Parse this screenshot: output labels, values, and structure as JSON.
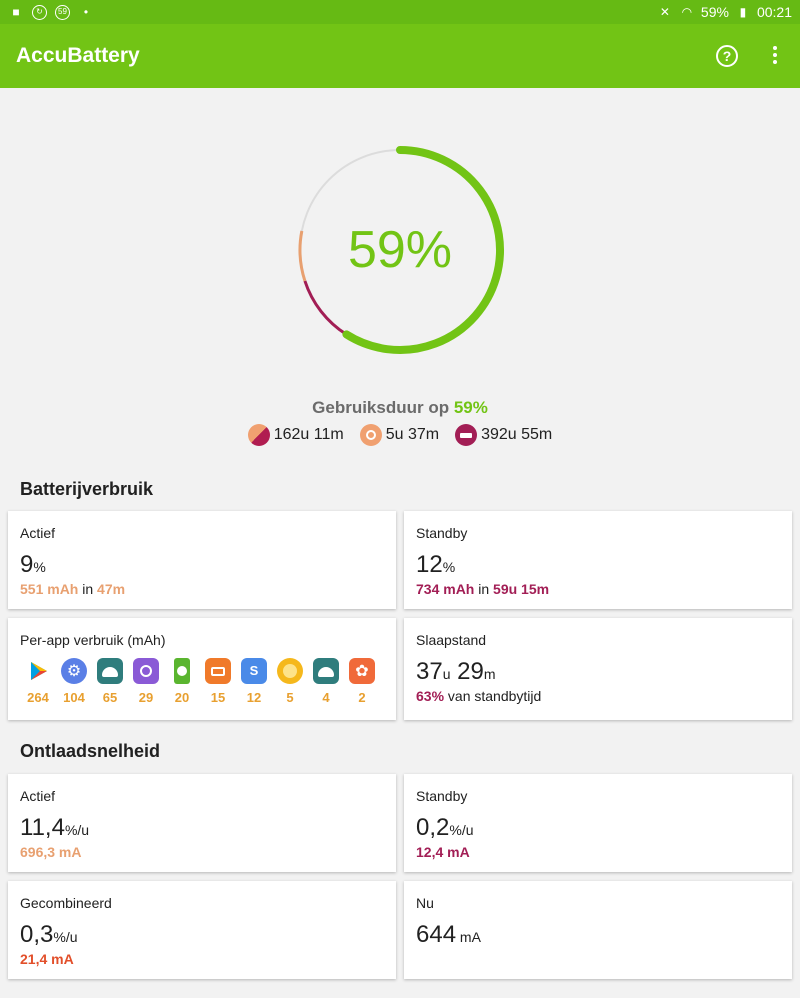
{
  "status_bar": {
    "battery": "59%",
    "time": "00:21",
    "badge": "59"
  },
  "app_bar": {
    "title": "AccuBattery"
  },
  "gauge": {
    "percent_label": "59%",
    "charge_fraction": 0.59
  },
  "usage": {
    "title_prefix": "Gebruiksduur op ",
    "title_pct": "59%",
    "active": "162u 11m",
    "screen": "5u 37m",
    "sleep": "392u 55m"
  },
  "battery_usage": {
    "title": "Batterijverbruik",
    "active": {
      "label": "Actief",
      "value": "9",
      "unit": "%",
      "mah": "551 mAh",
      "in": " in ",
      "time": "47m"
    },
    "standby": {
      "label": "Standby",
      "value": "12",
      "unit": "%",
      "mah": "734 mAh",
      "in": " in ",
      "time": "59u 15m"
    },
    "per_app": {
      "label": "Per-app verbruik (mAh)",
      "apps": [
        {
          "icon": "play-store-icon",
          "count": "264"
        },
        {
          "icon": "settings-icon",
          "count": "104"
        },
        {
          "icon": "android-icon",
          "count": "65"
        },
        {
          "icon": "camera-icon",
          "count": "29"
        },
        {
          "icon": "accubattery-icon",
          "count": "20"
        },
        {
          "icon": "video-icon",
          "count": "15"
        },
        {
          "icon": "samsung-store-icon",
          "count": "12"
        },
        {
          "icon": "yellow-circle-icon",
          "count": "5"
        },
        {
          "icon": "android-icon",
          "count": "4"
        },
        {
          "icon": "gallery-icon",
          "count": "2"
        }
      ]
    },
    "sleep": {
      "label": "Slaapstand",
      "hours": "37",
      "hours_unit": "u",
      "minutes": "29",
      "minutes_unit": "m",
      "pct": "63%",
      "pct_text": " van standbytijd"
    }
  },
  "discharge": {
    "title": "Ontlaadsnelheid",
    "active": {
      "label": "Actief",
      "value": "11,4",
      "unit": "%/u",
      "ma": "696,3 mA"
    },
    "standby": {
      "label": "Standby",
      "value": "0,2",
      "unit": "%/u",
      "ma": "12,4 mA"
    },
    "combined": {
      "label": "Gecombineerd",
      "value": "0,3",
      "unit": "%/u",
      "ma": "21,4 mA"
    },
    "now": {
      "label": "Nu",
      "value": "644",
      "unit": " mA"
    }
  },
  "colors": {
    "green": "#72c415",
    "orange": "#e8a070",
    "purple": "#a21e55",
    "red": "#e24f2a"
  }
}
